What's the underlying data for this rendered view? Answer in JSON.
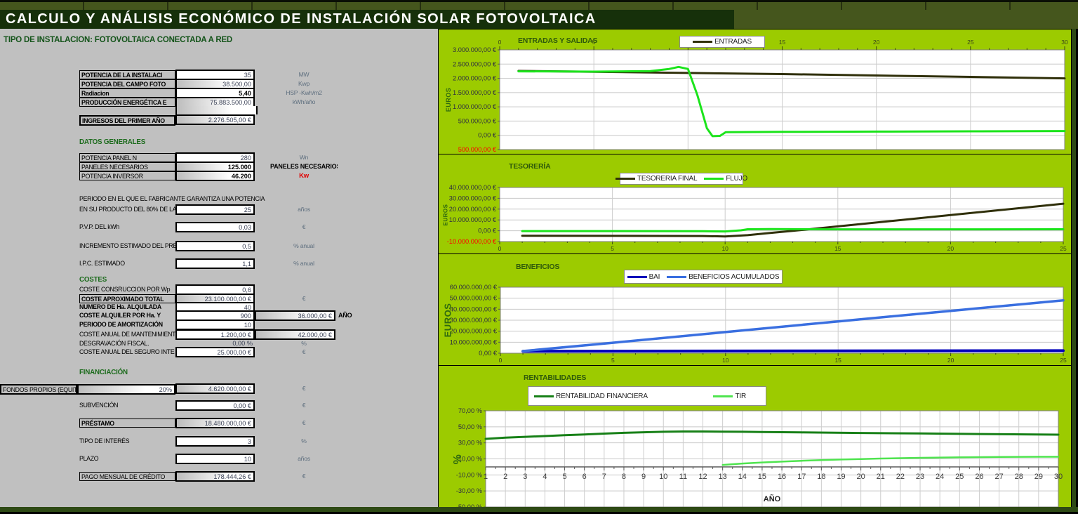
{
  "window": {
    "title": "CALCULO Y ANÁLISIS ECONÓMICO DE INSTALACIÓN SOLAR FOTOVOLTAICA",
    "subtitle": "TIPO DE INSTALACION: FOTOVOLTAICA CONECTADA A RED"
  },
  "colors": {
    "lime_chart_bg": "#9CCB00",
    "title_bg": "#16300A",
    "band_olive": "#45561D",
    "panel_gray": "#C0C0C0",
    "entradas_line": "#30300A",
    "salidas_flujo_line": "#1BE41B",
    "bai_line": "#0000BB",
    "acumulados_line": "#3A6FE0",
    "rentabilidad_line": "#178017",
    "tir_line": "#4FE44F",
    "negative_red": "#FF0000"
  },
  "sections": {
    "installation": {
      "rows": [
        {
          "label": "POTENCIA DE LA INSTALACI",
          "bold": true,
          "value": "35",
          "kind": "input",
          "unit": "MW"
        },
        {
          "label": "POTENCIA DEL CAMPO FOTO",
          "bold": true,
          "value": "38.500,00",
          "kind": "calc",
          "unit": "Kwp"
        },
        {
          "label": "Radiacion",
          "bold": true,
          "value": "5,40",
          "kind": "input",
          "bold_value": true,
          "unit": "HSP -Kwh/m2"
        },
        {
          "label": "PRODUCCIÓN ENERGÉTICA E",
          "bold": true,
          "value": "75.883.500,00",
          "kind": "calc",
          "unit": "kWh/año"
        }
      ],
      "ingresos": {
        "label": "INGRESOS DEL PRIMER AÑO",
        "value": "2.276.505,00 €",
        "kind": "calc"
      }
    },
    "datos_generales": {
      "heading": "DATOS GENERALES",
      "rows": [
        {
          "label": "POTENCIA PANEL N",
          "value": "280",
          "kind": "input",
          "unit": "Wn"
        },
        {
          "label": "PANELES NECESARIOS",
          "value": "125.000",
          "kind": "calc",
          "bold_value": true,
          "unit": "PANELES NECESARIOS",
          "unit_style": "bold-black"
        },
        {
          "label": "POTENCIA INVERSOR",
          "value": "46.200",
          "kind": "calc",
          "bold_value": true,
          "unit": "Kw",
          "unit_style": "red"
        }
      ]
    },
    "garantia": {
      "line1": "PERIODO EN EL QUE EL FABRICANTE GARANTIZA UNA POTENCIA",
      "label": "EN SU PRODUCTO DEL 80% DE LA",
      "value": "25",
      "unit": "años"
    },
    "spaced": [
      {
        "label": "P.V.P. DEL kWh",
        "value": "0,03",
        "unit": "€"
      },
      {
        "label": "INCREMENTO ESTIMADO DEL PRE",
        "value": "0,5",
        "unit": "% anual"
      },
      {
        "label": "I.P.C. ESTIMADO",
        "value": "1,1",
        "unit": "% anual"
      }
    ],
    "costes": {
      "heading": "COSTES",
      "rows": [
        {
          "label": "COSTE CONSRUCCION POR Wp",
          "value": "0,6",
          "kind": "input"
        },
        {
          "label": "COSTE APROXIMADO TOTAL",
          "bold": true,
          "label_boxed": true,
          "value": "23.100.000,00 €",
          "kind": "calc",
          "unit": "€"
        },
        {
          "label": "NUMERO DE Ha. ALQUILADA",
          "bold": true,
          "value": "40",
          "kind": "input"
        },
        {
          "label": "COSTE ALQUILER POR Ha. Y",
          "bold": true,
          "value": "900",
          "kind": "input",
          "value2": "36.000,00 €",
          "unit2": "AÑO"
        },
        {
          "label": "PERIODO DE AMORTIZACIÓN",
          "bold": true,
          "value": "10",
          "kind": "input"
        },
        {
          "label": "COSTE ANUAL DE MANTENIMIENT",
          "value": "1.200,00 €",
          "kind": "input",
          "value2": "42.000,00 €"
        },
        {
          "label": "DESGRAVACIÓN FISCAL.",
          "value": "0,00 %",
          "kind": "plain",
          "unit": "%"
        },
        {
          "label": "COSTE ANUAL DEL SEGURO INTE",
          "value": "25.000,00 €",
          "kind": "input",
          "unit": "€"
        }
      ]
    },
    "financiacion": {
      "heading": "FINANCIACIÓN",
      "rows": [
        {
          "pre_label": "FONDOS PROPIOS (EQUIT",
          "pct": "20%",
          "value": "4.620.000,00 €",
          "kind": "calc",
          "unit": "€"
        },
        {
          "label": "SUBVENCIÓN",
          "value": "0,00 €",
          "kind": "input",
          "unit": "€"
        },
        {
          "label": "PRÉSTAMO",
          "bold": true,
          "label_boxed": true,
          "value": "18.480.000,00 €",
          "kind": "calc",
          "unit": "€"
        },
        {
          "label": "TIPO DE INTERÉS",
          "value": "3",
          "kind": "input",
          "unit": "%"
        },
        {
          "label": "PLAZO",
          "value": "10",
          "kind": "input",
          "unit": "años"
        },
        {
          "label": "PAGO MENSUAL DE CRÉDITO",
          "label_boxed": true,
          "value": "178.444,26 €",
          "kind": "calc",
          "unit": "€"
        }
      ]
    }
  },
  "chart_data": [
    {
      "id": "entradas-salidas",
      "type": "line",
      "title": "ENTRADAS Y SALIDAS",
      "y_axis_title": "EUROS",
      "x_range": [
        0,
        30
      ],
      "y_range": [
        -500000,
        3000000
      ],
      "x_ticks": [
        0,
        5,
        10,
        15,
        20,
        25,
        30
      ],
      "x_tick_side": "top",
      "y_ticks": [
        {
          "v": 3000000,
          "label": "3.000.000,00 €"
        },
        {
          "v": 2500000,
          "label": "2.500.000,00 €"
        },
        {
          "v": 2000000,
          "label": "2.000.000,00 €"
        },
        {
          "v": 1500000,
          "label": "1.500.000,00 €"
        },
        {
          "v": 1000000,
          "label": "1.000.000,00 €"
        },
        {
          "v": 500000,
          "label": "500.000,00 €"
        },
        {
          "v": 0,
          "label": "0,00 €"
        },
        {
          "v": -500000,
          "label": "500.000,00 €",
          "negative": true
        }
      ],
      "legend": [
        {
          "name": "ENTRADAS",
          "color": "#30300A"
        }
      ],
      "series": [
        {
          "name": "ENTRADAS",
          "color": "#30300A",
          "width": 3,
          "points": [
            [
              1,
              2260000
            ],
            [
              5,
              2230000
            ],
            [
              10,
              2190000
            ],
            [
              15,
              2150000
            ],
            [
              20,
              2100000
            ],
            [
              25,
              2050000
            ],
            [
              30,
              2000000
            ]
          ]
        },
        {
          "name": "SALIDAS",
          "color": "#1BE41B",
          "width": 3,
          "points": [
            [
              1,
              2245000
            ],
            [
              5,
              2235000
            ],
            [
              8,
              2255000
            ],
            [
              9,
              2330000
            ],
            [
              9.5,
              2400000
            ],
            [
              10,
              2330000
            ],
            [
              10.5,
              1400000
            ],
            [
              11,
              250000
            ],
            [
              11.3,
              -30000
            ],
            [
              11.7,
              -20000
            ],
            [
              12,
              110000
            ],
            [
              15,
              122000
            ],
            [
              20,
              130000
            ],
            [
              25,
              140000
            ],
            [
              30,
              150000
            ]
          ]
        }
      ]
    },
    {
      "id": "tesoreria",
      "type": "line",
      "title": "TESORERÍA",
      "y_axis_title": "EUROS",
      "x_range": [
        0,
        25
      ],
      "y_range": [
        -10000000,
        40000000
      ],
      "x_ticks": [
        0,
        5,
        10,
        15,
        20,
        25
      ],
      "x_tick_side": "bottom",
      "y_ticks": [
        {
          "v": 40000000,
          "label": "40.000.000,00 €"
        },
        {
          "v": 30000000,
          "label": "30.000.000,00 €"
        },
        {
          "v": 20000000,
          "label": "20.000.000,00 €"
        },
        {
          "v": 10000000,
          "label": "10.000.000,00 €"
        },
        {
          "v": 0,
          "label": "0,00 €"
        },
        {
          "v": -10000000,
          "label": "-10.000.000,00 €",
          "negative": true
        }
      ],
      "legend": [
        {
          "name": "TESORERIA FINAL",
          "color": "#30300A"
        },
        {
          "name": "FLUJO",
          "color": "#1BE41B"
        }
      ],
      "series": [
        {
          "name": "TESORERIA FINAL",
          "color": "#30300A",
          "width": 3,
          "points": [
            [
              1,
              -4600000
            ],
            [
              5,
              -4750000
            ],
            [
              9,
              -4900000
            ],
            [
              10,
              -5300000
            ],
            [
              11,
              -4100000
            ],
            [
              12,
              -2100000
            ],
            [
              13,
              -100000
            ],
            [
              15,
              4000000
            ],
            [
              20,
              14500000
            ],
            [
              25,
              25000000
            ]
          ]
        },
        {
          "name": "FLUJO",
          "color": "#1BE41B",
          "width": 3,
          "points": [
            [
              1,
              -350000
            ],
            [
              5,
              -350000
            ],
            [
              9,
              -450000
            ],
            [
              10,
              -650000
            ],
            [
              10.7,
              400000
            ],
            [
              11,
              1350000
            ],
            [
              12,
              1500000
            ],
            [
              13,
              1400000
            ],
            [
              15,
              1300000
            ],
            [
              20,
              1280000
            ],
            [
              25,
              1350000
            ]
          ]
        }
      ]
    },
    {
      "id": "beneficios",
      "type": "line",
      "title": "BENEFICIOS",
      "y_axis_title": "EUROS",
      "x_range": [
        0,
        25
      ],
      "y_range": [
        0,
        60000000
      ],
      "x_ticks": [
        0,
        5,
        10,
        15,
        20,
        25
      ],
      "x_tick_side": "bottom",
      "y_ticks": [
        {
          "v": 60000000,
          "label": "60.000.000,00 €"
        },
        {
          "v": 50000000,
          "label": "50.000.000,00 €"
        },
        {
          "v": 40000000,
          "label": "40.000.000,00 €"
        },
        {
          "v": 30000000,
          "label": "30.000.000,00 €"
        },
        {
          "v": 20000000,
          "label": "20.000.000,00 €"
        },
        {
          "v": 10000000,
          "label": "10.000.000,00 €"
        },
        {
          "v": 0,
          "label": "0,00 €"
        }
      ],
      "legend": [
        {
          "name": "BAI",
          "color": "#0000BB"
        },
        {
          "name": "BENEFICIOS ACUMULADOS",
          "color": "#3A6FE0"
        }
      ],
      "series": [
        {
          "name": "BAI",
          "color": "#0000BB",
          "width": 4,
          "points": [
            [
              1,
              1800000
            ],
            [
              13,
              2050000
            ],
            [
              25,
              2300000
            ]
          ]
        },
        {
          "name": "BENEFICIOS ACUMULADOS",
          "color": "#3A6FE0",
          "width": 3.5,
          "points": [
            [
              1,
              1900000
            ],
            [
              5,
              9500000
            ],
            [
              10,
              19200000
            ],
            [
              15,
              28900000
            ],
            [
              20,
              38500000
            ],
            [
              25,
              48000000
            ]
          ]
        }
      ]
    },
    {
      "id": "rentabilidades",
      "type": "line",
      "title": "RENTABILIDADES",
      "y_axis_title": "%",
      "x_axis_title": "AÑO",
      "x_range": [
        1,
        30
      ],
      "y_range": [
        -50,
        70
      ],
      "x_ticks": [
        1,
        2,
        3,
        4,
        5,
        6,
        7,
        8,
        9,
        10,
        11,
        12,
        13,
        14,
        15,
        16,
        17,
        18,
        19,
        20,
        21,
        22,
        23,
        24,
        25,
        26,
        27,
        28,
        29,
        30
      ],
      "x_tick_side": "zero",
      "y_ticks": [
        {
          "v": 70,
          "label": "70,00 %"
        },
        {
          "v": 50,
          "label": "50,00 %"
        },
        {
          "v": 30,
          "label": "30,00 %"
        },
        {
          "v": 10,
          "label": "10,00 %"
        },
        {
          "v": -10,
          "label": "-10,00 %"
        },
        {
          "v": -30,
          "label": "-30,00 %"
        },
        {
          "v": -50,
          "label": "-50,00 %"
        }
      ],
      "legend": [
        {
          "name": "RENTABILIDAD FINANCIERA",
          "color": "#178017"
        },
        {
          "name": "TIR",
          "color": "#4FE44F"
        }
      ],
      "series": [
        {
          "name": "RENTABILIDAD FINANCIERA",
          "color": "#178017",
          "width": 3,
          "points": [
            [
              1,
              35
            ],
            [
              2,
              36.5
            ],
            [
              3,
              37.5
            ],
            [
              4,
              38.5
            ],
            [
              5,
              39.5
            ],
            [
              6,
              40.5
            ],
            [
              7,
              41.5
            ],
            [
              8,
              42.5
            ],
            [
              9,
              43.2
            ],
            [
              10,
              43.8
            ],
            [
              11,
              44.2
            ],
            [
              12,
              44.2
            ],
            [
              13,
              44
            ],
            [
              14,
              43.8
            ],
            [
              15,
              43.5
            ],
            [
              17,
              43
            ],
            [
              20,
              42.3
            ],
            [
              23,
              41.7
            ],
            [
              26,
              41
            ],
            [
              30,
              40.2
            ]
          ]
        },
        {
          "name": "TIR",
          "color": "#4FE44F",
          "width": 2.5,
          "points": [
            [
              13,
              2.5
            ],
            [
              14,
              4.2
            ],
            [
              15,
              5.5
            ],
            [
              16,
              6.6
            ],
            [
              17,
              7.6
            ],
            [
              18,
              8.4
            ],
            [
              19,
              9.2
            ],
            [
              20,
              9.8
            ],
            [
              21,
              10.4
            ],
            [
              22,
              10.9
            ],
            [
              23,
              11.3
            ],
            [
              24,
              11.7
            ],
            [
              25,
              12
            ],
            [
              26,
              12.2
            ],
            [
              27,
              12.4
            ],
            [
              28,
              12.5
            ],
            [
              29,
              12.6
            ],
            [
              30,
              12.6
            ]
          ]
        }
      ]
    }
  ]
}
